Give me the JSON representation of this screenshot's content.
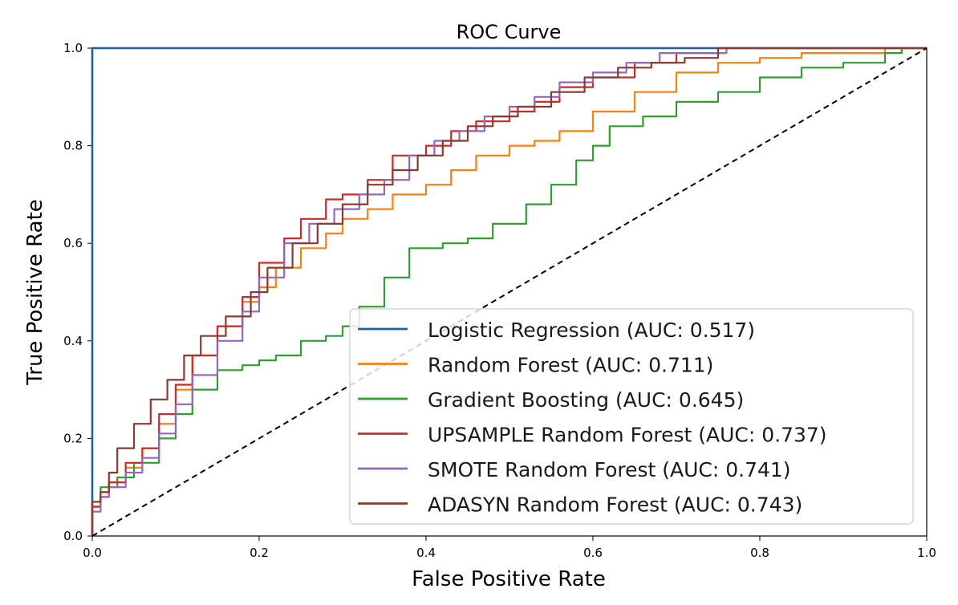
{
  "chart_data": {
    "type": "line",
    "title": "ROC Curve",
    "xlabel": "False Positive Rate",
    "ylabel": "True Positive Rate",
    "xlim": [
      0,
      1
    ],
    "ylim": [
      0,
      1
    ],
    "x_ticks": [
      "0.0",
      "0.2",
      "0.4",
      "0.6",
      "0.8",
      "1.0"
    ],
    "y_ticks": [
      "0.0",
      "0.2",
      "0.4",
      "0.6",
      "0.8",
      "1.0"
    ],
    "grid": false,
    "legend_position": "bottom-right",
    "reference_line": {
      "x": [
        0,
        1
      ],
      "y": [
        0,
        1
      ],
      "color": "#000000",
      "style": "dashed"
    },
    "series": [
      {
        "name": "Logistic Regression (AUC: 0.517)",
        "color": "#1f5fad",
        "x": [
          0,
          1
        ],
        "y": [
          0,
          1
        ]
      },
      {
        "name": "Random Forest (AUC: 0.711)",
        "color": "#ff7f0e",
        "x": [
          0,
          0.01,
          0.02,
          0.04,
          0.06,
          0.08,
          0.1,
          0.12,
          0.15,
          0.18,
          0.2,
          0.22,
          0.25,
          0.28,
          0.3,
          0.33,
          0.36,
          0.4,
          0.43,
          0.46,
          0.5,
          0.53,
          0.56,
          0.6,
          0.65,
          0.7,
          0.75,
          0.8,
          0.85,
          0.9,
          0.95,
          1.0
        ],
        "y": [
          0,
          0.06,
          0.08,
          0.11,
          0.14,
          0.18,
          0.23,
          0.3,
          0.37,
          0.43,
          0.48,
          0.51,
          0.55,
          0.59,
          0.62,
          0.65,
          0.67,
          0.7,
          0.72,
          0.75,
          0.78,
          0.8,
          0.81,
          0.83,
          0.87,
          0.91,
          0.95,
          0.97,
          0.98,
          0.99,
          0.99,
          1.0
        ]
      },
      {
        "name": "Gradient Boosting (AUC: 0.645)",
        "color": "#2ca02c",
        "x": [
          0,
          0.01,
          0.03,
          0.05,
          0.08,
          0.1,
          0.12,
          0.15,
          0.18,
          0.2,
          0.22,
          0.25,
          0.28,
          0.3,
          0.32,
          0.35,
          0.38,
          0.4,
          0.42,
          0.45,
          0.48,
          0.52,
          0.55,
          0.58,
          0.6,
          0.62,
          0.66,
          0.7,
          0.75,
          0.8,
          0.85,
          0.9,
          0.95,
          0.97,
          1.0
        ],
        "y": [
          0,
          0.06,
          0.1,
          0.12,
          0.15,
          0.2,
          0.25,
          0.3,
          0.34,
          0.35,
          0.36,
          0.37,
          0.4,
          0.41,
          0.43,
          0.47,
          0.53,
          0.59,
          0.59,
          0.6,
          0.61,
          0.64,
          0.68,
          0.72,
          0.77,
          0.8,
          0.84,
          0.86,
          0.89,
          0.91,
          0.94,
          0.96,
          0.97,
          0.99,
          1.0
        ]
      },
      {
        "name": "UPSAMPLE Random Forest (AUC: 0.737)",
        "color": "#d62728",
        "x": [
          0,
          0.01,
          0.02,
          0.04,
          0.06,
          0.08,
          0.1,
          0.12,
          0.15,
          0.18,
          0.2,
          0.23,
          0.25,
          0.28,
          0.3,
          0.33,
          0.36,
          0.4,
          0.43,
          0.46,
          0.5,
          0.53,
          0.56,
          0.6,
          0.65,
          0.7,
          0.75,
          0.8,
          0.85,
          0.9,
          0.95,
          1.0
        ],
        "y": [
          0,
          0.06,
          0.09,
          0.11,
          0.15,
          0.18,
          0.25,
          0.31,
          0.37,
          0.43,
          0.49,
          0.56,
          0.61,
          0.65,
          0.69,
          0.7,
          0.73,
          0.78,
          0.8,
          0.83,
          0.85,
          0.87,
          0.89,
          0.92,
          0.94,
          0.97,
          0.99,
          1.0,
          1.0,
          1.0,
          1.0,
          1.0
        ]
      },
      {
        "name": "SMOTE Random Forest (AUC: 0.741)",
        "color": "#9467bd",
        "x": [
          0,
          0.01,
          0.02,
          0.04,
          0.06,
          0.08,
          0.1,
          0.12,
          0.15,
          0.18,
          0.2,
          0.23,
          0.26,
          0.29,
          0.32,
          0.35,
          0.38,
          0.41,
          0.44,
          0.47,
          0.5,
          0.53,
          0.56,
          0.6,
          0.64,
          0.68,
          0.72,
          0.76,
          0.8,
          0.85,
          0.9,
          1.0
        ],
        "y": [
          0,
          0.05,
          0.08,
          0.1,
          0.13,
          0.16,
          0.21,
          0.27,
          0.33,
          0.4,
          0.46,
          0.53,
          0.6,
          0.64,
          0.67,
          0.7,
          0.73,
          0.78,
          0.81,
          0.83,
          0.86,
          0.88,
          0.9,
          0.93,
          0.95,
          0.97,
          0.99,
          0.99,
          1.0,
          1.0,
          1.0,
          1.0
        ]
      },
      {
        "name": "ADASYN Random Forest (AUC: 0.743)",
        "color": "#8c3a2c",
        "x": [
          0,
          0.01,
          0.02,
          0.03,
          0.05,
          0.07,
          0.09,
          0.11,
          0.13,
          0.16,
          0.19,
          0.21,
          0.24,
          0.27,
          0.3,
          0.33,
          0.36,
          0.39,
          0.42,
          0.45,
          0.48,
          0.51,
          0.55,
          0.59,
          0.63,
          0.67,
          0.71,
          0.75,
          0.8,
          0.85,
          0.9,
          1.0
        ],
        "y": [
          0,
          0.07,
          0.09,
          0.13,
          0.18,
          0.23,
          0.28,
          0.32,
          0.37,
          0.41,
          0.45,
          0.5,
          0.55,
          0.6,
          0.64,
          0.68,
          0.72,
          0.75,
          0.78,
          0.81,
          0.84,
          0.86,
          0.88,
          0.91,
          0.94,
          0.96,
          0.97,
          0.98,
          1.0,
          1.0,
          1.0,
          1.0
        ]
      }
    ]
  }
}
